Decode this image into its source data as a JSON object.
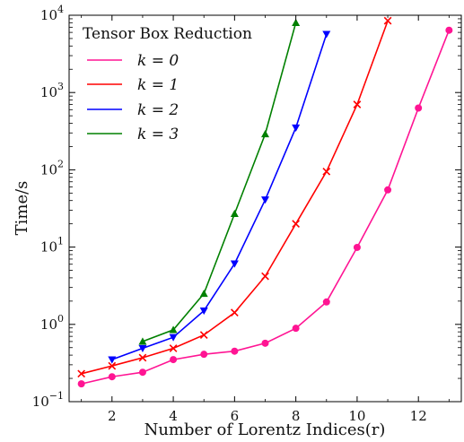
{
  "chart_data": {
    "type": "line",
    "xlabel": "Number of Lorentz Indices(r)",
    "ylabel": "Time/s",
    "yscale": "log",
    "xlim": [
      0.6,
      13.4
    ],
    "ylim": [
      0.1,
      10000
    ],
    "x_ticks": [
      2,
      4,
      6,
      8,
      10,
      12
    ],
    "x_tick_labels": [
      "2",
      "4",
      "6",
      "8",
      "10",
      "12"
    ],
    "y_ticks": [
      0.1,
      1,
      10,
      100,
      1000,
      10000
    ],
    "y_tick_labels": [
      {
        "base": "10",
        "exp": "−1"
      },
      {
        "base": "10",
        "exp": "0"
      },
      {
        "base": "10",
        "exp": "1"
      },
      {
        "base": "10",
        "exp": "2"
      },
      {
        "base": "10",
        "exp": "3"
      },
      {
        "base": "10",
        "exp": "4"
      }
    ],
    "legend": {
      "title": "Tensor Box Reduction",
      "position": "top-left",
      "labels": [
        "k = 0",
        "k = 1",
        "k = 2",
        "k = 3"
      ]
    },
    "series": [
      {
        "name": "k = 0",
        "color": "#ff1493",
        "marker": "circle",
        "x": [
          1,
          2,
          3,
          4,
          5,
          6,
          7,
          8,
          9,
          10,
          11,
          12,
          13
        ],
        "y": [
          0.17,
          0.21,
          0.24,
          0.35,
          0.41,
          0.45,
          0.57,
          0.89,
          1.95,
          9.9,
          55,
          630,
          6400
        ]
      },
      {
        "name": "k = 1",
        "color": "#ff0000",
        "marker": "x",
        "x": [
          1,
          2,
          3,
          4,
          5,
          6,
          7,
          8,
          9,
          10,
          11
        ],
        "y": [
          0.23,
          0.29,
          0.37,
          0.49,
          0.73,
          1.42,
          4.2,
          20,
          95,
          700,
          8500
        ]
      },
      {
        "name": "k = 2",
        "color": "#0000ff",
        "marker": "triangle-down",
        "x": [
          2,
          3,
          4,
          5,
          6,
          7,
          8,
          9
        ],
        "y": [
          0.35,
          0.49,
          0.68,
          1.5,
          6.1,
          41,
          350,
          5700
        ]
      },
      {
        "name": "k = 3",
        "color": "#008000",
        "marker": "triangle-up",
        "x": [
          3,
          4,
          5,
          6,
          7,
          8
        ],
        "y": [
          0.6,
          0.85,
          2.5,
          27,
          290,
          8000
        ]
      }
    ]
  }
}
